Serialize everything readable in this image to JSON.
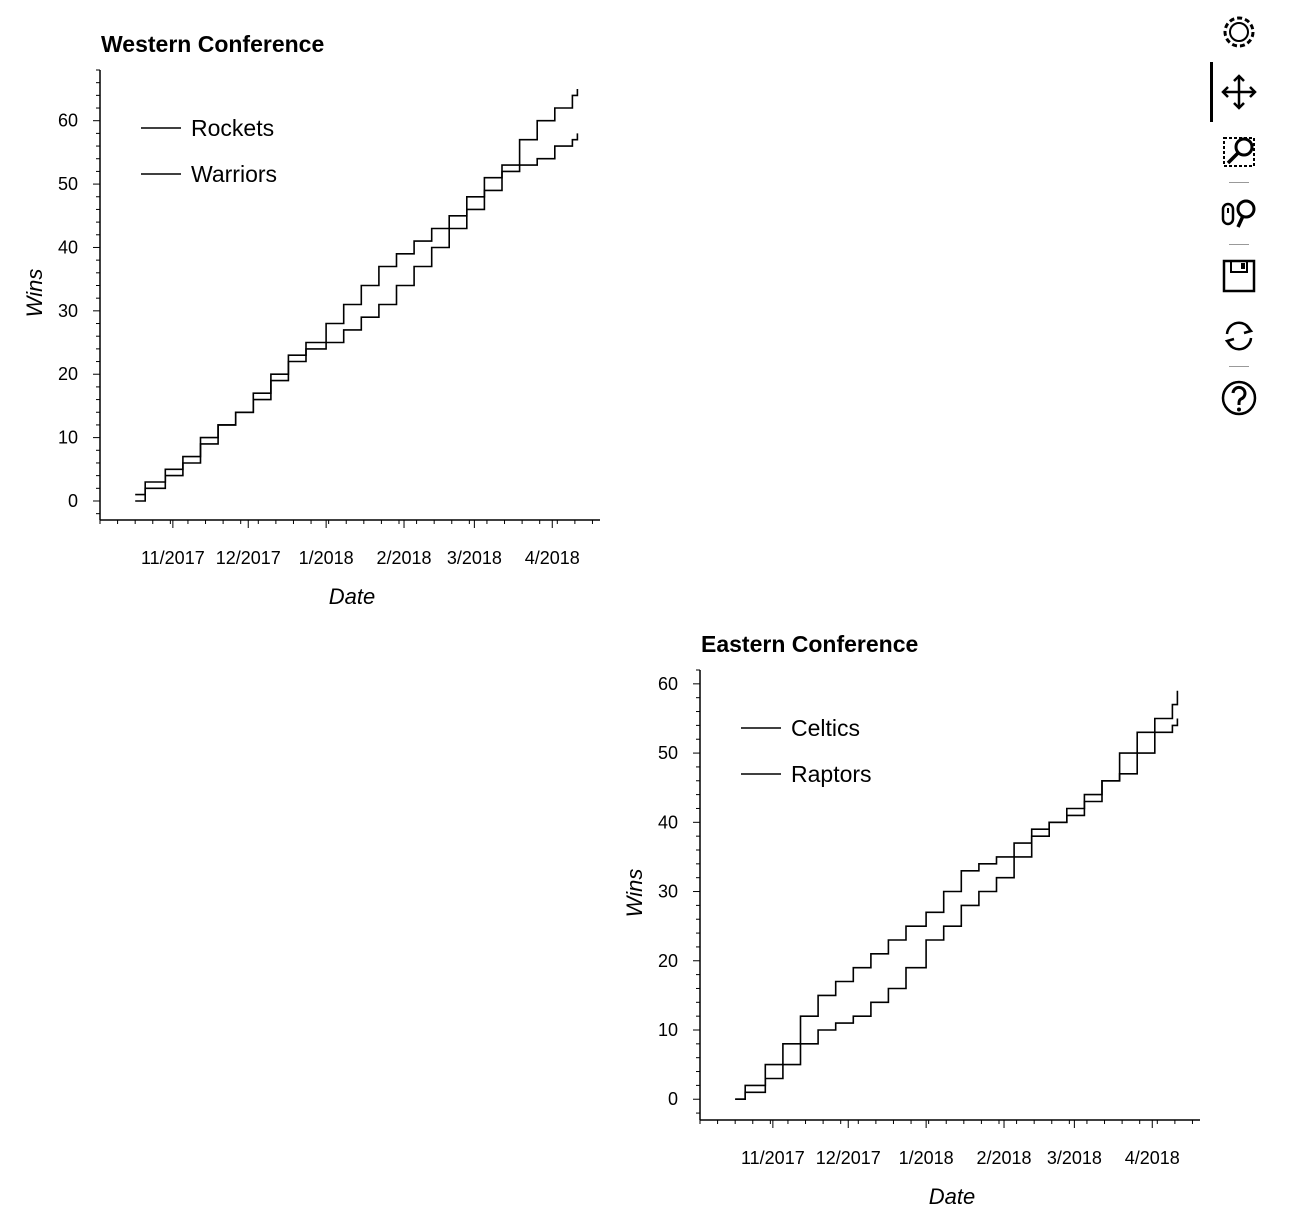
{
  "toolbar": {
    "tools": [
      {
        "name": "bokeh-logo-icon",
        "interactable": false
      },
      {
        "name": "pan-icon",
        "interactable": true,
        "active": true
      },
      {
        "name": "box-zoom-icon",
        "interactable": true
      },
      {
        "name": "wheel-zoom-icon",
        "interactable": true
      },
      {
        "name": "save-icon",
        "interactable": true
      },
      {
        "name": "reset-icon",
        "interactable": true
      },
      {
        "name": "help-icon",
        "interactable": true
      }
    ]
  },
  "chart_data": [
    {
      "type": "line",
      "title": "Western Conference",
      "xlabel": "Date",
      "ylabel": "Wins",
      "legend_position": "top-left",
      "xlim": [
        "2017-10-03",
        "2018-04-20"
      ],
      "ylim": [
        -3,
        68
      ],
      "x_ticks": [
        "2017-11-01",
        "2017-12-01",
        "2018-01-01",
        "2018-02-01",
        "2018-03-01",
        "2018-04-01"
      ],
      "x_tick_labels": [
        "11/2017",
        "12/2017",
        "1/2018",
        "2/2018",
        "3/2018",
        "4/2018"
      ],
      "y_ticks": [
        0,
        10,
        20,
        30,
        40,
        50,
        60
      ],
      "series": [
        {
          "name": "Rockets",
          "x": [
            "2017-10-17",
            "2017-10-21",
            "2017-10-29",
            "2017-11-05",
            "2017-11-12",
            "2017-11-19",
            "2017-11-26",
            "2017-12-03",
            "2017-12-10",
            "2017-12-17",
            "2017-12-24",
            "2018-01-01",
            "2018-01-08",
            "2018-01-15",
            "2018-01-22",
            "2018-01-29",
            "2018-02-05",
            "2018-02-12",
            "2018-02-19",
            "2018-02-26",
            "2018-03-05",
            "2018-03-12",
            "2018-03-19",
            "2018-03-26",
            "2018-04-02",
            "2018-04-09",
            "2018-04-11"
          ],
          "y": [
            0,
            2,
            4,
            6,
            9,
            12,
            14,
            16,
            19,
            22,
            24,
            25,
            27,
            29,
            31,
            34,
            37,
            40,
            43,
            46,
            49,
            53,
            57,
            60,
            62,
            64,
            65
          ]
        },
        {
          "name": "Warriors",
          "x": [
            "2017-10-17",
            "2017-10-21",
            "2017-10-29",
            "2017-11-05",
            "2017-11-12",
            "2017-11-19",
            "2017-11-26",
            "2017-12-03",
            "2017-12-10",
            "2017-12-17",
            "2017-12-24",
            "2018-01-01",
            "2018-01-08",
            "2018-01-15",
            "2018-01-22",
            "2018-01-29",
            "2018-02-05",
            "2018-02-12",
            "2018-02-19",
            "2018-02-26",
            "2018-03-05",
            "2018-03-12",
            "2018-03-19",
            "2018-03-26",
            "2018-04-02",
            "2018-04-09",
            "2018-04-11"
          ],
          "y": [
            1,
            3,
            5,
            7,
            10,
            12,
            14,
            17,
            20,
            23,
            25,
            28,
            31,
            34,
            37,
            39,
            41,
            43,
            45,
            48,
            51,
            52,
            53,
            54,
            56,
            57,
            58
          ]
        }
      ]
    },
    {
      "type": "line",
      "title": "Eastern Conference",
      "xlabel": "Date",
      "ylabel": "Wins",
      "legend_position": "top-left",
      "xlim": [
        "2017-10-03",
        "2018-04-20"
      ],
      "ylim": [
        -3,
        62
      ],
      "x_ticks": [
        "2017-11-01",
        "2017-12-01",
        "2018-01-01",
        "2018-02-01",
        "2018-03-01",
        "2018-04-01"
      ],
      "x_tick_labels": [
        "11/2017",
        "12/2017",
        "1/2018",
        "2/2018",
        "3/2018",
        "4/2018"
      ],
      "y_ticks": [
        0,
        10,
        20,
        30,
        40,
        50,
        60
      ],
      "series": [
        {
          "name": "Celtics",
          "x": [
            "2017-10-17",
            "2017-10-21",
            "2017-10-29",
            "2017-11-05",
            "2017-11-12",
            "2017-11-19",
            "2017-11-26",
            "2017-12-03",
            "2017-12-10",
            "2017-12-17",
            "2017-12-24",
            "2018-01-01",
            "2018-01-08",
            "2018-01-15",
            "2018-01-22",
            "2018-01-29",
            "2018-02-05",
            "2018-02-12",
            "2018-02-19",
            "2018-02-26",
            "2018-03-05",
            "2018-03-12",
            "2018-03-19",
            "2018-03-26",
            "2018-04-02",
            "2018-04-09",
            "2018-04-11"
          ],
          "y": [
            0,
            2,
            5,
            8,
            12,
            15,
            17,
            19,
            21,
            23,
            25,
            27,
            30,
            33,
            34,
            35,
            37,
            39,
            40,
            41,
            43,
            46,
            50,
            53,
            55,
            57,
            59
          ]
        },
        {
          "name": "Raptors",
          "x": [
            "2017-10-17",
            "2017-10-21",
            "2017-10-29",
            "2017-11-05",
            "2017-11-12",
            "2017-11-19",
            "2017-11-26",
            "2017-12-03",
            "2017-12-10",
            "2017-12-17",
            "2017-12-24",
            "2018-01-01",
            "2018-01-08",
            "2018-01-15",
            "2018-01-22",
            "2018-01-29",
            "2018-02-05",
            "2018-02-12",
            "2018-02-19",
            "2018-02-26",
            "2018-03-05",
            "2018-03-12",
            "2018-03-19",
            "2018-03-26",
            "2018-04-02",
            "2018-04-09",
            "2018-04-11"
          ],
          "y": [
            0,
            1,
            3,
            5,
            8,
            10,
            11,
            12,
            14,
            16,
            19,
            23,
            25,
            28,
            30,
            32,
            35,
            38,
            40,
            42,
            44,
            46,
            47,
            50,
            53,
            54,
            55
          ]
        }
      ]
    }
  ]
}
